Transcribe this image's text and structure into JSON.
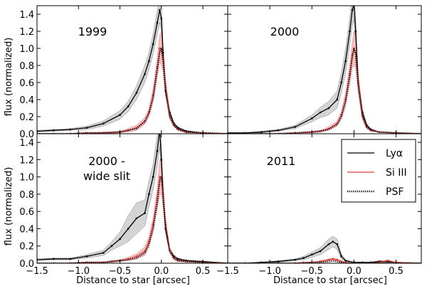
{
  "chart_data": {
    "type": "line",
    "shared": {
      "xlabel": "Distance to star [arcsec]",
      "ylabel": "flux (normalized)",
      "xlim": [
        -1.5,
        0.8
      ],
      "ylim": [
        0.0,
        1.5
      ],
      "xticks": [
        -1.5,
        -1.0,
        -0.5,
        0.0,
        0.5
      ],
      "xtick_labels": [
        "−1.5",
        "−1.0",
        "−0.5",
        "0.0",
        "0.5"
      ],
      "yticks": [
        0.0,
        0.2,
        0.4,
        0.6,
        0.8,
        1.0,
        1.2,
        1.4
      ],
      "ytick_labels": [
        "0.0",
        "0.2",
        "0.4",
        "0.6",
        "0.8",
        "1.0",
        "1.2",
        "1.4"
      ],
      "grid": false
    },
    "legend": {
      "placement": "upper-right of 2011 panel",
      "entries": [
        {
          "label": "Lyα",
          "style": "solid",
          "color": "#000000"
        },
        {
          "label": "Si III",
          "style": "solid",
          "color": "#e06666"
        },
        {
          "label": "PSF",
          "style": "dotted",
          "color": "#000000"
        }
      ]
    },
    "colors": {
      "lya": "#000000",
      "lya_band": "#b8b8b8",
      "si": "#d94040",
      "si_band": "#f2a6a6",
      "psf": "#000000"
    },
    "panels": [
      {
        "title": "1999",
        "x": [
          -1.5,
          -1.3,
          -1.1,
          -0.9,
          -0.7,
          -0.5,
          -0.4,
          -0.3,
          -0.2,
          -0.15,
          -0.1,
          -0.05,
          -0.02,
          0.0,
          0.02,
          0.05,
          0.1,
          0.15,
          0.2,
          0.3,
          0.5,
          0.8
        ],
        "series": [
          {
            "name": "Lyα",
            "values": [
              0.03,
              0.04,
              0.05,
              0.07,
              0.12,
              0.22,
              0.32,
              0.48,
              0.7,
              0.85,
              1.05,
              1.3,
              1.45,
              1.35,
              0.95,
              0.5,
              0.25,
              0.12,
              0.07,
              0.03,
              0.01,
              0.0
            ],
            "err": [
              0.01,
              0.01,
              0.01,
              0.02,
              0.03,
              0.05,
              0.06,
              0.08,
              0.1,
              0.1,
              0.12,
              0.14,
              0.15,
              0.14,
              0.1,
              0.06,
              0.03,
              0.02,
              0.01,
              0.01,
              0.0,
              0.0
            ]
          },
          {
            "name": "Si III",
            "values": [
              0.0,
              0.0,
              0.0,
              0.01,
              0.01,
              0.02,
              0.04,
              0.07,
              0.15,
              0.25,
              0.45,
              0.78,
              1.0,
              1.0,
              0.88,
              0.55,
              0.22,
              0.1,
              0.05,
              0.02,
              0.01,
              0.0
            ],
            "err": [
              0.0,
              0.0,
              0.0,
              0.0,
              0.01,
              0.01,
              0.02,
              0.03,
              0.04,
              0.05,
              0.08,
              0.12,
              0.15,
              0.2,
              0.15,
              0.1,
              0.05,
              0.02,
              0.01,
              0.01,
              0.0,
              0.0
            ]
          },
          {
            "name": "PSF",
            "values": [
              0.0,
              0.0,
              0.0,
              0.01,
              0.01,
              0.02,
              0.04,
              0.06,
              0.14,
              0.24,
              0.42,
              0.75,
              0.95,
              1.0,
              0.85,
              0.52,
              0.2,
              0.1,
              0.05,
              0.02,
              0.01,
              0.0
            ]
          }
        ]
      },
      {
        "title": "2000",
        "x": [
          -1.5,
          -1.3,
          -1.1,
          -0.9,
          -0.7,
          -0.5,
          -0.4,
          -0.3,
          -0.2,
          -0.15,
          -0.1,
          -0.05,
          -0.02,
          0.0,
          0.02,
          0.05,
          0.1,
          0.15,
          0.2,
          0.3,
          0.5,
          0.8
        ],
        "series": [
          {
            "name": "Lyα",
            "values": [
              0.01,
              0.01,
              0.02,
              0.04,
              0.08,
              0.18,
              0.25,
              0.3,
              0.4,
              0.6,
              0.85,
              1.2,
              1.45,
              1.52,
              1.2,
              0.6,
              0.25,
              0.1,
              0.05,
              0.02,
              0.01,
              0.0
            ],
            "err": [
              0.0,
              0.0,
              0.01,
              0.01,
              0.02,
              0.04,
              0.06,
              0.08,
              0.1,
              0.12,
              0.14,
              0.16,
              0.18,
              0.18,
              0.14,
              0.08,
              0.04,
              0.02,
              0.01,
              0.0,
              0.0,
              0.0
            ]
          },
          {
            "name": "Si III",
            "values": [
              0.0,
              0.0,
              0.0,
              0.0,
              0.01,
              0.02,
              0.03,
              0.06,
              0.12,
              0.22,
              0.4,
              0.7,
              0.92,
              1.0,
              0.95,
              0.6,
              0.22,
              0.08,
              0.04,
              0.02,
              0.01,
              0.0
            ],
            "err": [
              0.0,
              0.0,
              0.0,
              0.0,
              0.0,
              0.01,
              0.01,
              0.02,
              0.03,
              0.05,
              0.08,
              0.12,
              0.15,
              0.2,
              0.18,
              0.12,
              0.05,
              0.02,
              0.01,
              0.0,
              0.0,
              0.0
            ]
          },
          {
            "name": "PSF",
            "values": [
              0.0,
              0.0,
              0.0,
              0.0,
              0.01,
              0.02,
              0.03,
              0.05,
              0.11,
              0.2,
              0.38,
              0.68,
              0.9,
              1.0,
              0.93,
              0.58,
              0.2,
              0.08,
              0.04,
              0.02,
              0.01,
              0.0
            ]
          }
        ]
      },
      {
        "title": "2000 -\nwide slit",
        "title_lines": [
          "2000 -",
          "wide slit"
        ],
        "x": [
          -1.5,
          -1.3,
          -1.1,
          -0.9,
          -0.7,
          -0.6,
          -0.5,
          -0.4,
          -0.3,
          -0.2,
          -0.15,
          -0.1,
          -0.05,
          -0.02,
          0.0,
          0.02,
          0.05,
          0.1,
          0.15,
          0.2,
          0.3,
          0.5,
          0.8
        ],
        "series": [
          {
            "name": "Lyα",
            "values": [
              0.04,
              0.05,
              0.05,
              0.08,
              0.12,
              0.2,
              0.28,
              0.4,
              0.52,
              0.58,
              0.8,
              1.0,
              1.3,
              1.55,
              1.2,
              0.8,
              0.4,
              0.15,
              0.08,
              0.05,
              0.03,
              0.02,
              0.0
            ],
            "err": [
              0.01,
              0.01,
              0.01,
              0.02,
              0.03,
              0.05,
              0.08,
              0.15,
              0.18,
              0.15,
              0.15,
              0.15,
              0.18,
              0.2,
              0.15,
              0.1,
              0.05,
              0.03,
              0.02,
              0.01,
              0.01,
              0.0,
              0.0
            ]
          },
          {
            "name": "Si III",
            "values": [
              0.0,
              0.0,
              0.0,
              0.01,
              0.01,
              0.02,
              0.03,
              0.05,
              0.08,
              0.14,
              0.25,
              0.45,
              0.75,
              1.0,
              1.0,
              0.8,
              0.45,
              0.15,
              0.06,
              0.03,
              0.02,
              0.01,
              0.0
            ],
            "err": [
              0.0,
              0.0,
              0.0,
              0.0,
              0.0,
              0.01,
              0.01,
              0.02,
              0.03,
              0.05,
              0.06,
              0.08,
              0.12,
              0.2,
              0.2,
              0.15,
              0.08,
              0.03,
              0.02,
              0.01,
              0.0,
              0.0,
              0.0
            ]
          },
          {
            "name": "PSF",
            "values": [
              0.0,
              0.0,
              0.0,
              0.01,
              0.01,
              0.02,
              0.03,
              0.04,
              0.06,
              0.12,
              0.22,
              0.4,
              0.7,
              0.95,
              1.0,
              0.78,
              0.42,
              0.14,
              0.06,
              0.03,
              0.02,
              0.01,
              0.0
            ]
          }
        ]
      },
      {
        "title": "2011",
        "x": [
          -1.5,
          -1.3,
          -1.1,
          -0.9,
          -0.7,
          -0.6,
          -0.5,
          -0.4,
          -0.3,
          -0.25,
          -0.2,
          -0.15,
          -0.1,
          0.0,
          0.1,
          0.2,
          0.3,
          0.4,
          0.5,
          0.8
        ],
        "series": [
          {
            "name": "Lyα",
            "values": [
              0.0,
              0.0,
              0.01,
              0.02,
              0.04,
              0.06,
              0.1,
              0.14,
              0.22,
              0.25,
              0.22,
              0.08,
              0.03,
              0.01,
              0.01,
              0.01,
              0.02,
              0.02,
              0.01,
              0.0
            ],
            "err": [
              0.0,
              0.0,
              0.0,
              0.01,
              0.01,
              0.02,
              0.03,
              0.04,
              0.06,
              0.06,
              0.06,
              0.03,
              0.01,
              0.0,
              0.0,
              0.0,
              0.01,
              0.01,
              0.0,
              0.0
            ]
          },
          {
            "name": "Si III",
            "values": [
              0.0,
              0.0,
              0.0,
              0.0,
              0.0,
              0.01,
              0.01,
              0.02,
              0.04,
              0.05,
              0.04,
              0.02,
              0.01,
              0.0,
              0.0,
              0.0,
              0.01,
              0.03,
              0.01,
              0.0
            ],
            "err": [
              0.0,
              0.0,
              0.0,
              0.0,
              0.0,
              0.0,
              0.0,
              0.01,
              0.01,
              0.01,
              0.01,
              0.01,
              0.0,
              0.0,
              0.0,
              0.0,
              0.0,
              0.01,
              0.0,
              0.0
            ]
          },
          {
            "name": "PSF",
            "values": [
              0.0,
              0.0,
              0.0,
              0.0,
              0.0,
              0.0,
              0.01,
              0.01,
              0.02,
              0.03,
              0.02,
              0.01,
              0.0,
              0.0,
              0.0,
              0.0,
              0.0,
              0.01,
              0.0,
              0.0
            ]
          }
        ]
      }
    ]
  }
}
